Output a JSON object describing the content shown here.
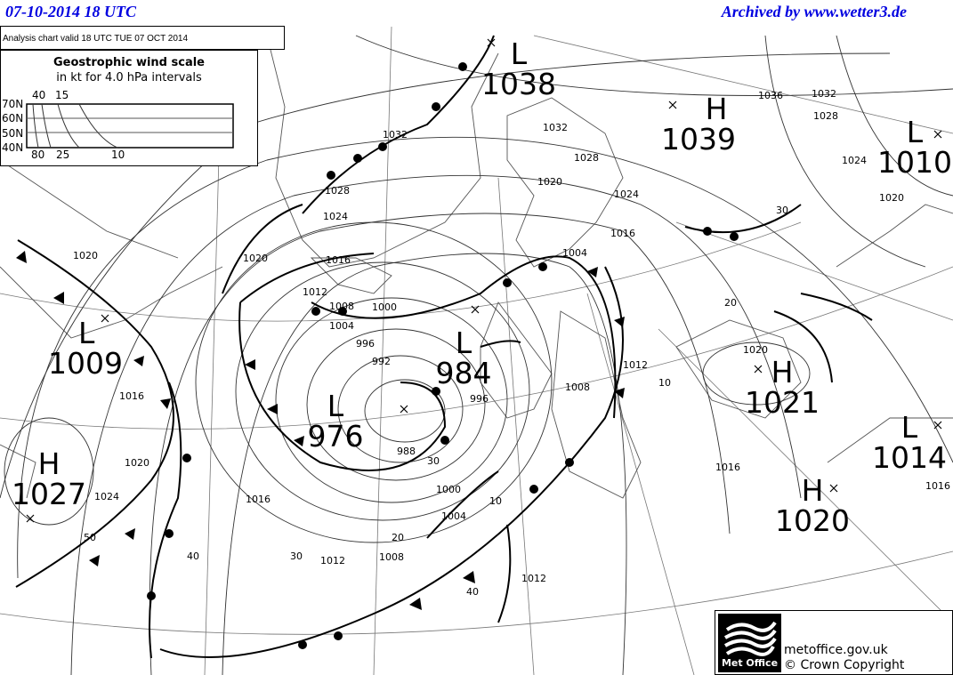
{
  "header": {
    "date": "07-10-2014  18 UTC",
    "archive": "Archived by www.wetter3.de"
  },
  "chart_info": "Analysis chart  valid 18 UTC TUE 07  OCT 2014",
  "wind_scale": {
    "title": "Geostrophic wind scale",
    "subtitle": "in kt for 4.0 hPa intervals",
    "latitudes": [
      "70N",
      "60N",
      "50N",
      "40N"
    ],
    "top_labels": [
      "40",
      "15"
    ],
    "bottom_labels": [
      "80",
      "25",
      "10"
    ]
  },
  "pressure_systems": [
    {
      "type": "L",
      "value": "1038"
    },
    {
      "type": "H",
      "value": "1039"
    },
    {
      "type": "L",
      "value": "1010"
    },
    {
      "type": "L",
      "value": "1009"
    },
    {
      "type": "L",
      "value": "984"
    },
    {
      "type": "L",
      "value": "976"
    },
    {
      "type": "H",
      "value": "1021"
    },
    {
      "type": "H",
      "value": "1027"
    },
    {
      "type": "L",
      "value": "1014"
    },
    {
      "type": "H",
      "value": "1020"
    }
  ],
  "isobar_labels": [
    "1032",
    "1028",
    "1024",
    "1020",
    "1016",
    "1012",
    "1008",
    "1004",
    "1000",
    "996",
    "992",
    "988",
    "1000",
    "1004",
    "1008",
    "1012",
    "1016",
    "1020",
    "1024",
    "1016",
    "1020",
    "1032",
    "1028",
    "1020",
    "1024",
    "1016",
    "1004",
    "1008",
    "1012",
    "996",
    "1036",
    "1032",
    "1028",
    "1024",
    "1020",
    "1020",
    "1016",
    "1012",
    "1016"
  ],
  "grid_labels": [
    "40",
    "30",
    "20",
    "10",
    "10",
    "20",
    "30",
    "50",
    "40",
    "30"
  ],
  "footer": {
    "logo": "Met Office",
    "site": "metoffice.gov.uk",
    "copyright": "© Crown Copyright"
  }
}
